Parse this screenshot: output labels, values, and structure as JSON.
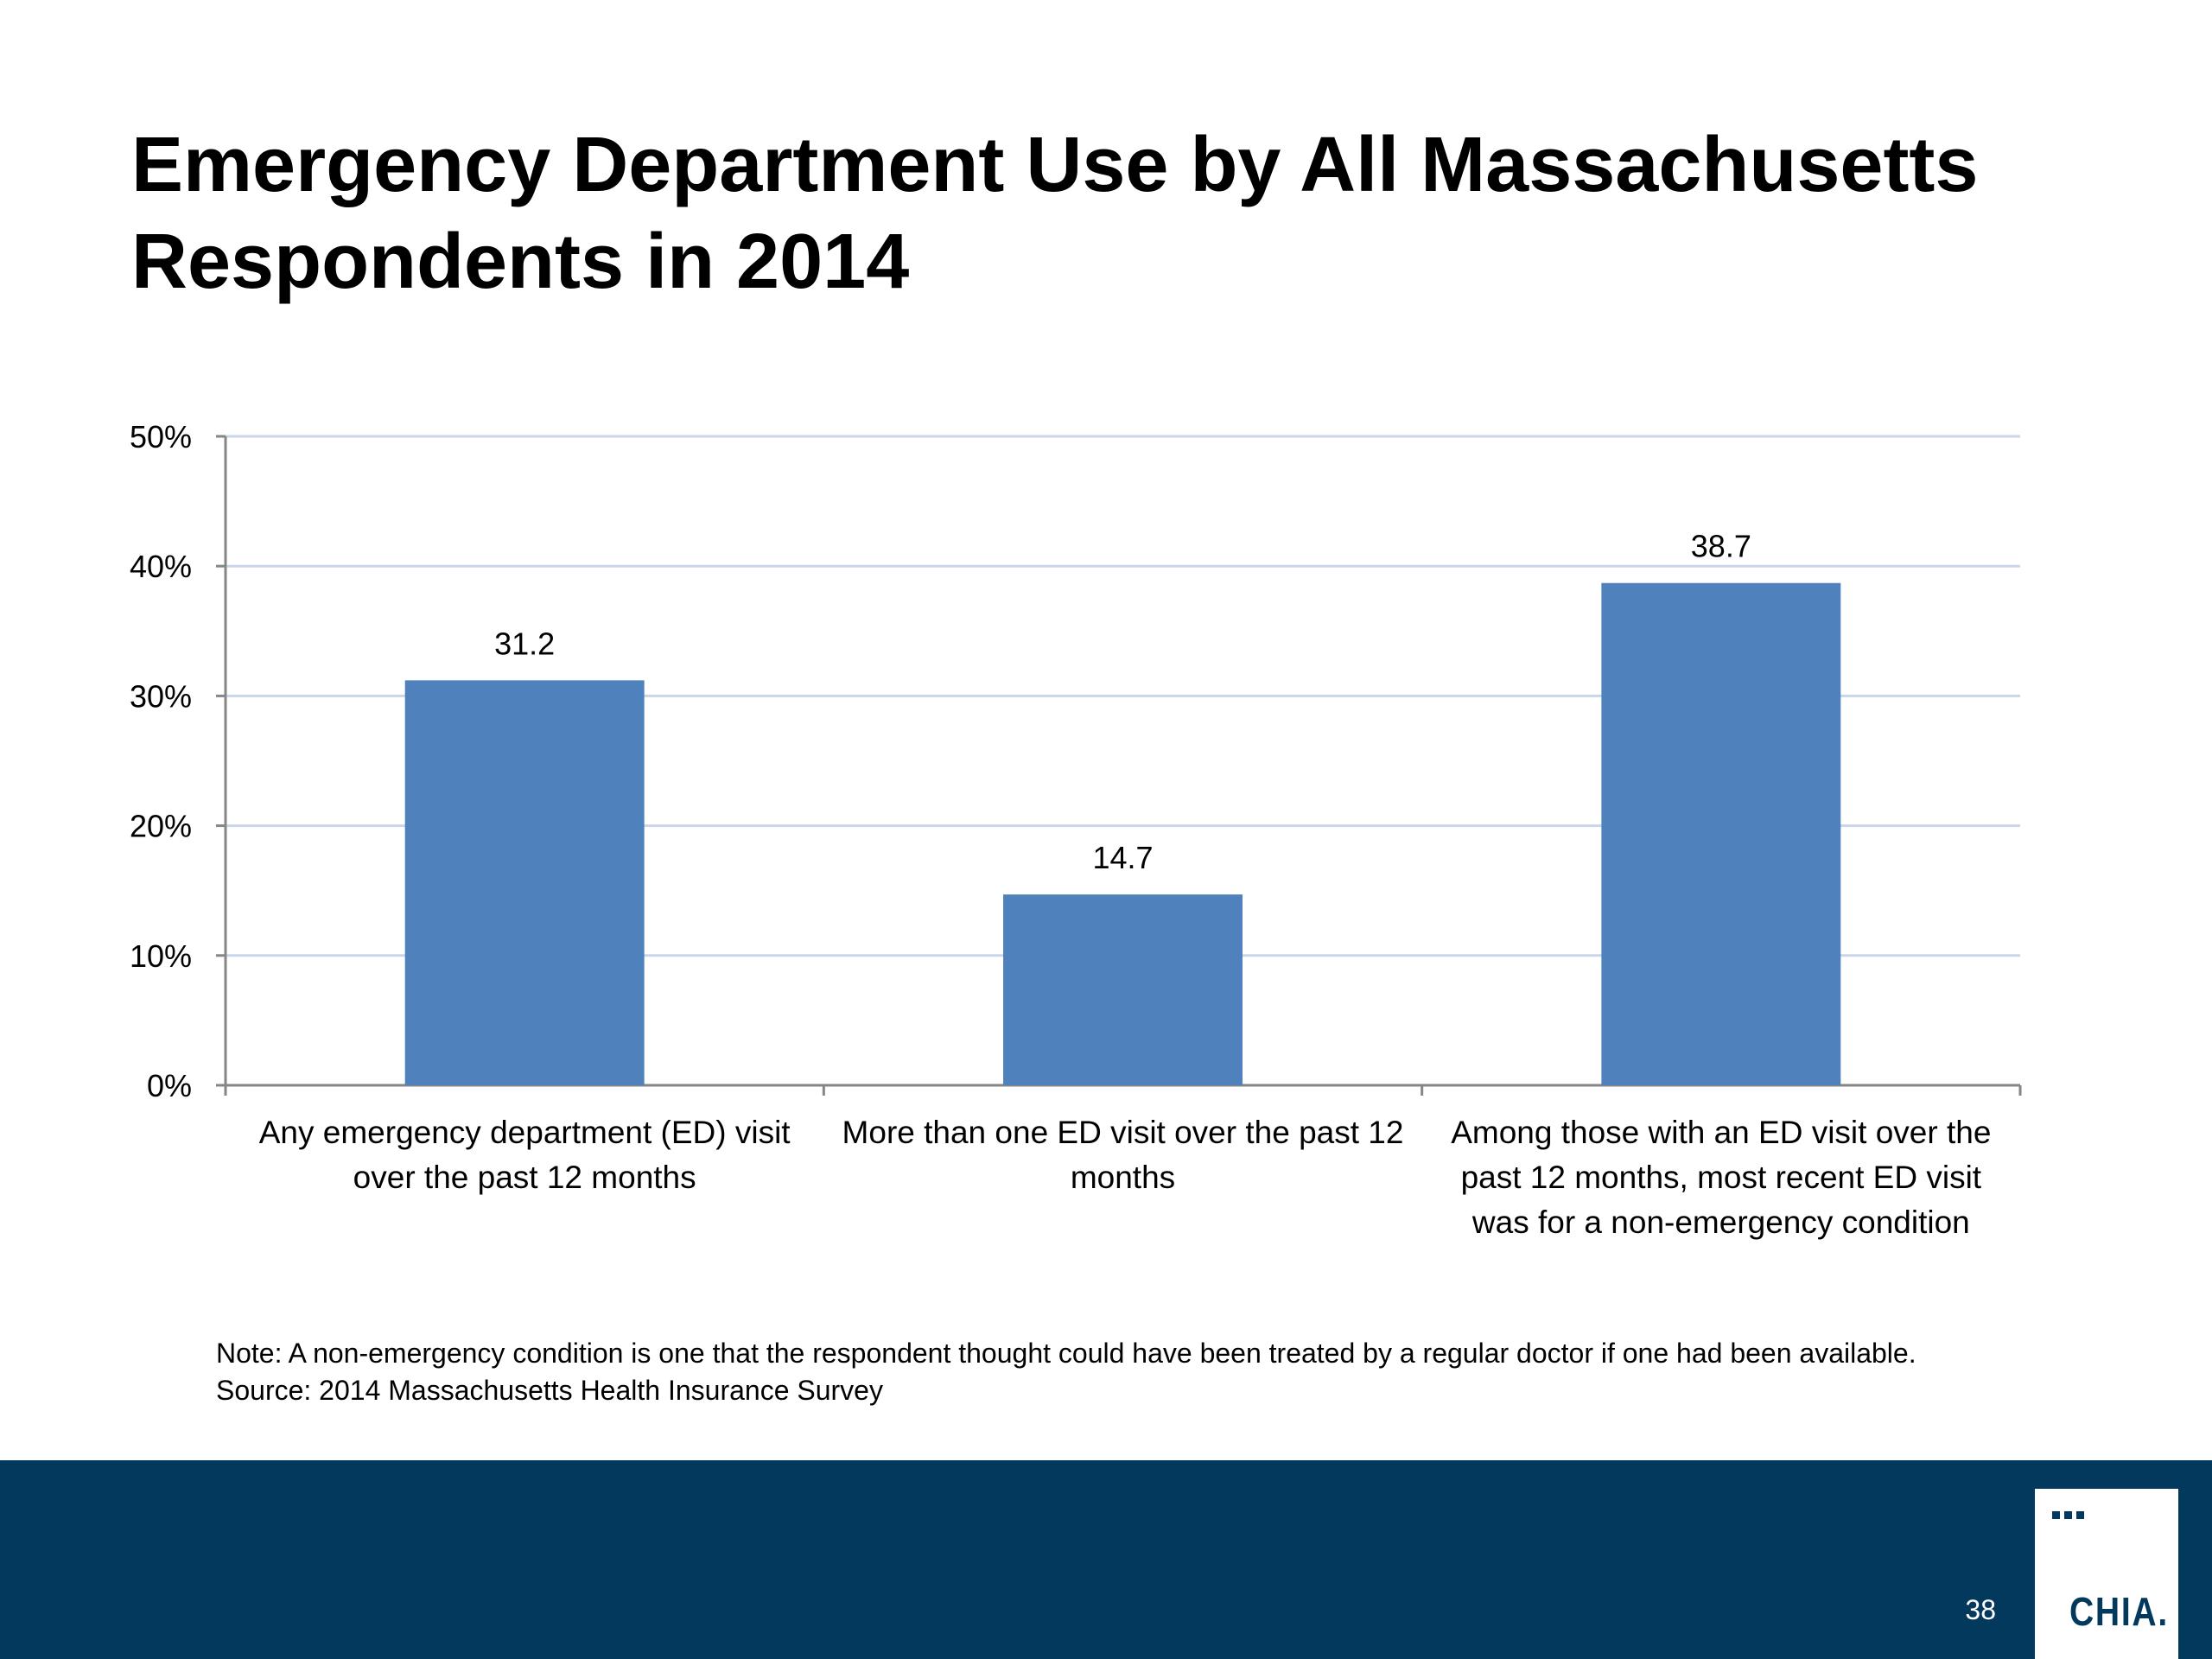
{
  "slide": {
    "title_line1": "Emergency Department Use by All Massachusetts",
    "title_line2": "Respondents in 2014",
    "note": "Note: A non-emergency condition is one that the respondent thought could have been treated by a regular doctor if one had been available.",
    "source": "Source:  2014 Massachusetts Health Insurance Survey",
    "page_number": "38",
    "logo_text": "CHIA."
  },
  "colors": {
    "bar": "#4f81bd",
    "gridline": "#c9d6ea",
    "axis": "#868686",
    "footer": "#04395e"
  },
  "chart_data": {
    "type": "bar",
    "categories": [
      [
        "Any emergency department (ED) visit",
        "over the past 12 months"
      ],
      [
        "More than one ED visit over the past 12",
        "months"
      ],
      [
        "Among those with an ED visit over the",
        "past 12 months, most recent ED visit",
        "was for a non-emergency condition"
      ]
    ],
    "values": [
      31.2,
      14.7,
      38.7
    ],
    "value_labels": [
      "31.2",
      "14.7",
      "38.7"
    ],
    "yticks": [
      "0%",
      "10%",
      "20%",
      "30%",
      "40%",
      "50%"
    ],
    "ylim": [
      0,
      50
    ],
    "grid": true,
    "legend": false
  }
}
